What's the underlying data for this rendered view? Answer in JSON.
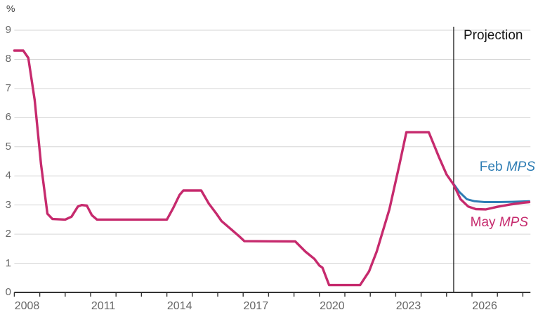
{
  "chart_data": {
    "type": "line",
    "unit_label": "%",
    "title": "",
    "ylim": [
      0,
      9
    ],
    "yticks": [
      0,
      1,
      2,
      3,
      4,
      5,
      6,
      7,
      8,
      9
    ],
    "x_range": [
      2008,
      2028.3
    ],
    "year_ticks_start": 2008,
    "year_ticks_end": 2028,
    "xtick_label_years": [
      2008,
      2011,
      2014,
      2017,
      2020,
      2023,
      2026
    ],
    "grid": "horizontal-only",
    "legend_position": "right-of-projection-lines",
    "projection_divider": {
      "label": "Projection",
      "x_year": 2025.28
    },
    "series": [
      {
        "name": "Feb MPS",
        "label_prefix": "Feb ",
        "label_italic": "MPS",
        "color": "#2e7db4",
        "stroke_width": 3,
        "points": [
          [
            2025.28,
            3.72
          ],
          [
            2025.5,
            3.45
          ],
          [
            2025.8,
            3.2
          ],
          [
            2026.1,
            3.13
          ],
          [
            2026.5,
            3.1
          ],
          [
            2027.0,
            3.1
          ],
          [
            2027.6,
            3.11
          ],
          [
            2028.25,
            3.13
          ]
        ]
      },
      {
        "name": "May MPS",
        "label_prefix": "May ",
        "label_italic": "MPS",
        "color": "#c62a6d",
        "stroke_width": 3.4,
        "points": [
          [
            2008.0,
            8.3
          ],
          [
            2008.35,
            8.3
          ],
          [
            2008.55,
            8.05
          ],
          [
            2008.8,
            6.6
          ],
          [
            2009.05,
            4.4
          ],
          [
            2009.3,
            2.7
          ],
          [
            2009.5,
            2.52
          ],
          [
            2010.0,
            2.5
          ],
          [
            2010.25,
            2.6
          ],
          [
            2010.5,
            2.95
          ],
          [
            2010.65,
            3.0
          ],
          [
            2010.85,
            2.98
          ],
          [
            2011.05,
            2.65
          ],
          [
            2011.25,
            2.5
          ],
          [
            2014.0,
            2.5
          ],
          [
            2014.25,
            2.9
          ],
          [
            2014.5,
            3.35
          ],
          [
            2014.65,
            3.5
          ],
          [
            2015.35,
            3.5
          ],
          [
            2015.65,
            3.05
          ],
          [
            2015.95,
            2.7
          ],
          [
            2016.15,
            2.45
          ],
          [
            2016.55,
            2.15
          ],
          [
            2016.85,
            1.92
          ],
          [
            2017.05,
            1.76
          ],
          [
            2019.05,
            1.75
          ],
          [
            2019.45,
            1.4
          ],
          [
            2019.8,
            1.15
          ],
          [
            2020.0,
            0.92
          ],
          [
            2020.12,
            0.85
          ],
          [
            2020.38,
            0.25
          ],
          [
            2021.6,
            0.25
          ],
          [
            2021.95,
            0.72
          ],
          [
            2022.25,
            1.4
          ],
          [
            2022.75,
            2.85
          ],
          [
            2023.15,
            4.4
          ],
          [
            2023.42,
            5.5
          ],
          [
            2024.3,
            5.5
          ],
          [
            2024.7,
            4.65
          ],
          [
            2025.0,
            4.05
          ],
          [
            2025.28,
            3.7
          ],
          [
            2025.55,
            3.2
          ],
          [
            2025.85,
            2.95
          ],
          [
            2026.15,
            2.86
          ],
          [
            2026.55,
            2.85
          ],
          [
            2027.0,
            2.94
          ],
          [
            2027.5,
            3.02
          ],
          [
            2028.0,
            3.08
          ],
          [
            2028.25,
            3.1
          ]
        ]
      }
    ]
  },
  "colors": {
    "background": "#ffffff",
    "gridline": "#d6d6d6",
    "axis": "#333333",
    "tick_label": "#666666",
    "projection_line": "#111111",
    "projection_text": "#161616",
    "feb_mps": "#2e7db4",
    "may_mps": "#c62a6d"
  }
}
